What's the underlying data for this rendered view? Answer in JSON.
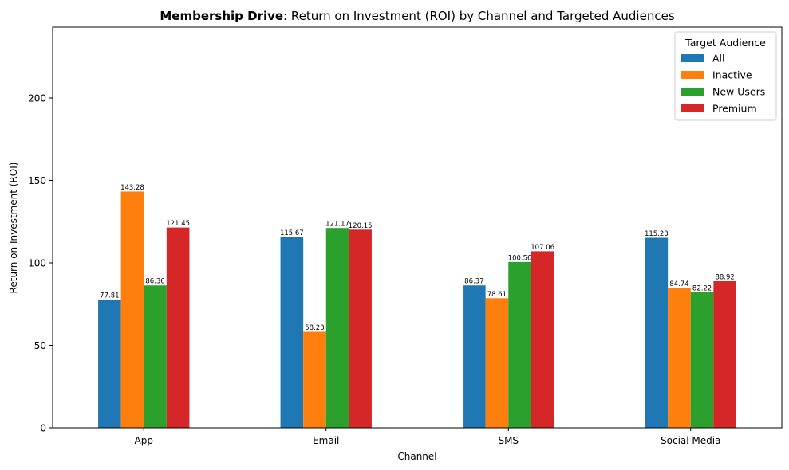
{
  "chart_data": {
    "type": "bar",
    "title_bold": "Membership Drive",
    "title_rest": ": Return on Investment (ROI) by Channel and Targeted Audiences",
    "xlabel": "Channel",
    "ylabel": "Return on Investment (ROI)",
    "categories": [
      "App",
      "Email",
      "SMS",
      "Social Media"
    ],
    "ylim": [
      0,
      243
    ],
    "yticks": [
      0,
      50,
      100,
      150,
      200
    ],
    "legend_title": "Target Audience",
    "legend_position": "top-right",
    "grid": false,
    "series": [
      {
        "name": "All",
        "color": "#1f77b4",
        "values": [
          77.81,
          115.67,
          86.37,
          115.23
        ]
      },
      {
        "name": "Inactive",
        "color": "#ff7f0e",
        "values": [
          143.28,
          58.23,
          78.61,
          84.74
        ]
      },
      {
        "name": "New Users",
        "color": "#2ca02c",
        "values": [
          86.36,
          121.17,
          100.56,
          82.22
        ]
      },
      {
        "name": "Premium",
        "color": "#d62728",
        "values": [
          121.45,
          120.15,
          107.06,
          88.92
        ]
      }
    ]
  }
}
